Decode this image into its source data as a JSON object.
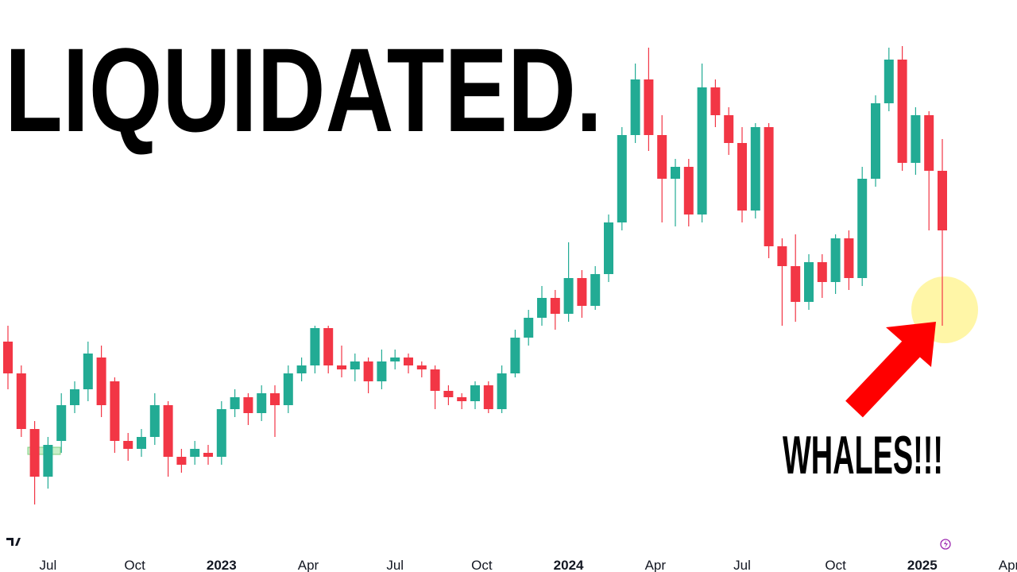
{
  "chart_data": {
    "type": "candlestick",
    "title": "LIQUIDATED.",
    "annotation": "WHALES!!!",
    "up_color": "#22ab94",
    "down_color": "#f23645",
    "x": [
      0,
      2,
      4,
      6,
      8,
      10,
      12,
      14,
      16,
      18,
      20,
      22,
      24,
      26,
      28,
      30,
      32,
      34,
      36,
      38,
      40,
      42,
      44,
      46,
      48,
      50,
      52,
      54,
      56,
      58,
      60,
      62,
      64,
      66,
      68,
      70,
      72,
      74,
      76,
      78,
      80,
      82,
      84,
      86,
      88,
      90,
      92,
      94,
      96,
      98,
      100,
      102,
      104,
      106,
      108,
      110,
      112,
      114,
      116,
      118,
      120,
      122,
      124,
      126,
      128,
      130,
      132,
      134,
      136,
      138,
      140
    ],
    "open": [
      290,
      250,
      180,
      120,
      165,
      210,
      230,
      270,
      240,
      165,
      155,
      170,
      210,
      145,
      145,
      150,
      145,
      205,
      220,
      200,
      225,
      210,
      250,
      260,
      307,
      260,
      255,
      265,
      240,
      265,
      270,
      260,
      255,
      228,
      220,
      215,
      235,
      205,
      250,
      295,
      320,
      345,
      325,
      370,
      335,
      375,
      440,
      550,
      620,
      550,
      495,
      510,
      450,
      610,
      575,
      540,
      455,
      560,
      410,
      385,
      340,
      390,
      365,
      420,
      370,
      495,
      590,
      645,
      515,
      575,
      505
    ],
    "high": [
      310,
      260,
      190,
      170,
      225,
      240,
      290,
      285,
      245,
      175,
      180,
      225,
      215,
      155,
      165,
      160,
      215,
      230,
      225,
      235,
      235,
      260,
      270,
      310,
      310,
      285,
      275,
      270,
      280,
      280,
      275,
      265,
      260,
      235,
      225,
      240,
      240,
      260,
      305,
      330,
      360,
      355,
      415,
      380,
      385,
      450,
      560,
      640,
      660,
      575,
      520,
      520,
      640,
      620,
      585,
      560,
      565,
      565,
      420,
      425,
      400,
      400,
      425,
      430,
      510,
      600,
      660,
      662,
      585,
      580,
      545
    ],
    "low": [
      230,
      170,
      85,
      105,
      150,
      200,
      215,
      195,
      150,
      140,
      145,
      160,
      120,
      125,
      135,
      135,
      135,
      195,
      185,
      190,
      170,
      200,
      240,
      250,
      250,
      245,
      240,
      225,
      230,
      255,
      250,
      245,
      205,
      210,
      205,
      205,
      200,
      200,
      245,
      285,
      310,
      305,
      315,
      320,
      330,
      365,
      430,
      540,
      530,
      440,
      435,
      435,
      440,
      560,
      525,
      440,
      445,
      395,
      310,
      315,
      330,
      345,
      350,
      355,
      360,
      485,
      580,
      505,
      500,
      430,
      310
    ],
    "close": [
      250,
      180,
      120,
      160,
      210,
      230,
      275,
      210,
      165,
      155,
      170,
      210,
      145,
      135,
      155,
      145,
      205,
      220,
      200,
      225,
      210,
      250,
      260,
      307,
      260,
      255,
      265,
      240,
      265,
      270,
      260,
      255,
      228,
      220,
      215,
      235,
      205,
      250,
      295,
      320,
      345,
      325,
      370,
      335,
      375,
      440,
      550,
      620,
      550,
      495,
      510,
      450,
      610,
      575,
      540,
      455,
      560,
      410,
      385,
      340,
      390,
      365,
      420,
      370,
      495,
      590,
      645,
      515,
      575,
      505,
      430
    ],
    "xlim": [
      -1,
      151
    ],
    "ylim": [
      0,
      720
    ],
    "xticks": [
      {
        "value": 6,
        "label": "Jul"
      },
      {
        "value": 19,
        "label": "Oct"
      },
      {
        "value": 32,
        "label": "2023"
      },
      {
        "value": 45,
        "label": "Apr"
      },
      {
        "value": 58,
        "label": "Jul"
      },
      {
        "value": 71,
        "label": "Oct"
      },
      {
        "value": 84,
        "label": "2024"
      },
      {
        "value": 97,
        "label": "Apr"
      },
      {
        "value": 110,
        "label": "Jul"
      },
      {
        "value": 124,
        "label": "Oct"
      },
      {
        "value": 137,
        "label": "2025"
      },
      {
        "value": 150,
        "label": "Apr"
      }
    ]
  }
}
